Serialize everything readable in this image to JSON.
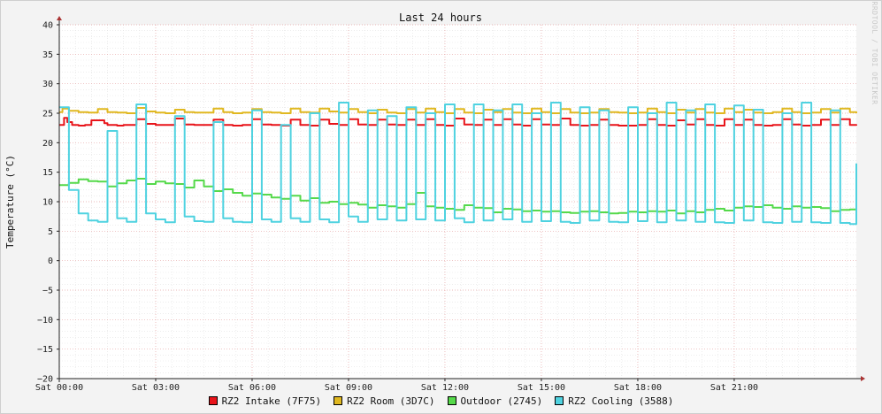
{
  "chart_data": {
    "type": "line",
    "title": "Last 24 hours",
    "ylabel": "Temperature (°C)",
    "xlabel": "",
    "watermark": "RRDTOOL / TOBI OETIKER",
    "ylim": [
      -20,
      40
    ],
    "yticks": [
      40,
      35,
      30,
      25,
      20,
      15,
      10,
      5,
      0,
      -5,
      -10,
      -15,
      -20
    ],
    "ytick_labels": [
      "40",
      "35",
      "30",
      "25",
      "20",
      "15",
      "10",
      "5",
      "0",
      "−5",
      "−10",
      "−15",
      "−20"
    ],
    "xlim_hours": [
      0,
      24.8
    ],
    "xticks": [
      {
        "hour": 0,
        "label": "Sat 00:00"
      },
      {
        "hour": 3,
        "label": "Sat 03:00"
      },
      {
        "hour": 6,
        "label": "Sat 06:00"
      },
      {
        "hour": 9,
        "label": "Sat 09:00"
      },
      {
        "hour": 12,
        "label": "Sat 12:00"
      },
      {
        "hour": 15,
        "label": "Sat 15:00"
      },
      {
        "hour": 18,
        "label": "Sat 18:00"
      },
      {
        "hour": 21,
        "label": "Sat 21:00"
      }
    ],
    "grid": true,
    "legend_position": "bottom",
    "series": [
      {
        "name": "RZ2 Intake (7F75)",
        "color": "#e8141a",
        "x": [
          0,
          0.1,
          0.15,
          0.25,
          0.4,
          0.6,
          0.8,
          1.0,
          1.4,
          1.5,
          1.6,
          1.8,
          2.0,
          2.4,
          2.7,
          3.0,
          3.3,
          3.6,
          3.9,
          4.2,
          4.5,
          4.8,
          5.1,
          5.4,
          5.7,
          6.0,
          6.3,
          6.6,
          6.9,
          7.2,
          7.5,
          7.8,
          8.1,
          8.4,
          8.7,
          9.0,
          9.3,
          9.6,
          9.9,
          10.2,
          10.5,
          10.8,
          11.1,
          11.4,
          11.7,
          12.0,
          12.3,
          12.6,
          12.9,
          13.2,
          13.5,
          13.8,
          14.1,
          14.4,
          14.7,
          15.0,
          15.3,
          15.6,
          15.9,
          16.2,
          16.5,
          16.8,
          17.1,
          17.4,
          17.7,
          18.0,
          18.3,
          18.6,
          18.9,
          19.2,
          19.5,
          19.8,
          20.1,
          20.4,
          20.7,
          21.0,
          21.3,
          21.6,
          21.9,
          22.2,
          22.5,
          22.8,
          23.1,
          23.4,
          23.7,
          24.0,
          24.3,
          24.6,
          24.8
        ],
        "y": [
          23.0,
          23.0,
          24.2,
          23.5,
          23.0,
          22.9,
          23.0,
          23.8,
          23.3,
          23.0,
          23.0,
          22.9,
          23.0,
          24.0,
          23.2,
          23.0,
          23.0,
          24.1,
          23.1,
          23.0,
          23.0,
          23.9,
          23.0,
          22.9,
          23.0,
          24.0,
          23.1,
          23.0,
          22.9,
          23.9,
          23.0,
          22.9,
          23.9,
          23.2,
          23.0,
          24.0,
          23.1,
          23.0,
          23.9,
          23.1,
          23.0,
          23.9,
          23.0,
          24.0,
          23.0,
          22.9,
          24.1,
          23.1,
          23.0,
          23.9,
          23.0,
          24.0,
          23.1,
          22.9,
          24.0,
          23.1,
          23.0,
          24.1,
          23.0,
          22.9,
          23.0,
          23.9,
          23.0,
          22.9,
          22.9,
          23.0,
          24.0,
          23.0,
          22.9,
          23.8,
          23.1,
          24.0,
          23.0,
          22.9,
          24.0,
          23.0,
          23.9,
          23.0,
          22.9,
          23.0,
          24.0,
          23.1,
          22.9,
          23.0,
          23.9,
          23.0,
          24.0,
          23.0,
          22.9
        ]
      },
      {
        "name": "RZ2 Room (3D7C)",
        "color": "#e0b820",
        "x": [
          0,
          0.1,
          0.3,
          0.6,
          0.9,
          1.2,
          1.5,
          1.8,
          2.1,
          2.4,
          2.7,
          3.0,
          3.3,
          3.6,
          3.9,
          4.2,
          4.5,
          4.8,
          5.1,
          5.4,
          5.7,
          6.0,
          6.3,
          6.6,
          6.9,
          7.2,
          7.5,
          7.8,
          8.1,
          8.4,
          8.7,
          9.0,
          9.3,
          9.6,
          9.9,
          10.2,
          10.5,
          10.8,
          11.1,
          11.4,
          11.7,
          12.0,
          12.3,
          12.6,
          12.9,
          13.2,
          13.5,
          13.8,
          14.1,
          14.4,
          14.7,
          15.0,
          15.3,
          15.6,
          15.9,
          16.2,
          16.5,
          16.8,
          17.1,
          17.4,
          17.7,
          18.0,
          18.3,
          18.6,
          18.9,
          19.2,
          19.5,
          19.8,
          20.1,
          20.4,
          20.7,
          21.0,
          21.3,
          21.6,
          21.9,
          22.2,
          22.5,
          22.8,
          23.1,
          23.4,
          23.7,
          24.0,
          24.3,
          24.6,
          24.8
        ],
        "y": [
          25.2,
          25.8,
          25.4,
          25.2,
          25.1,
          25.7,
          25.2,
          25.1,
          25.0,
          25.9,
          25.3,
          25.1,
          25.0,
          25.6,
          25.2,
          25.1,
          25.1,
          25.8,
          25.2,
          25.0,
          25.1,
          25.7,
          25.2,
          25.1,
          25.0,
          25.8,
          25.2,
          25.1,
          25.8,
          25.3,
          25.1,
          25.7,
          25.2,
          25.0,
          25.6,
          25.1,
          25.0,
          25.7,
          25.1,
          25.8,
          25.2,
          25.0,
          25.7,
          25.1,
          25.0,
          25.6,
          25.2,
          25.7,
          25.1,
          25.0,
          25.8,
          25.2,
          25.0,
          25.7,
          25.1,
          25.0,
          25.1,
          25.7,
          25.2,
          25.1,
          25.0,
          25.1,
          25.8,
          25.2,
          25.0,
          25.6,
          25.1,
          25.7,
          25.1,
          25.0,
          25.8,
          25.2,
          25.6,
          25.1,
          25.0,
          25.2,
          25.8,
          25.2,
          25.0,
          25.1,
          25.7,
          25.1,
          25.8,
          25.2,
          25.0
        ]
      },
      {
        "name": "Outdoor (2745)",
        "color": "#55d94a",
        "x": [
          0,
          0.3,
          0.6,
          0.9,
          1.2,
          1.5,
          1.8,
          2.1,
          2.4,
          2.7,
          3.0,
          3.3,
          3.6,
          3.9,
          4.2,
          4.5,
          4.8,
          5.1,
          5.4,
          5.7,
          6.0,
          6.3,
          6.6,
          6.9,
          7.2,
          7.5,
          7.8,
          8.1,
          8.4,
          8.7,
          9.0,
          9.3,
          9.6,
          9.9,
          10.2,
          10.5,
          10.8,
          11.1,
          11.4,
          11.7,
          12.0,
          12.3,
          12.6,
          12.9,
          13.2,
          13.5,
          13.8,
          14.1,
          14.4,
          14.7,
          15.0,
          15.3,
          15.6,
          15.9,
          16.2,
          16.5,
          16.8,
          17.1,
          17.4,
          17.7,
          18.0,
          18.3,
          18.6,
          18.9,
          19.2,
          19.5,
          19.8,
          20.1,
          20.4,
          20.7,
          21.0,
          21.3,
          21.6,
          21.9,
          22.2,
          22.5,
          22.8,
          23.1,
          23.4,
          23.7,
          24.0,
          24.3,
          24.6,
          24.8
        ],
        "y": [
          12.8,
          13.2,
          13.8,
          13.5,
          13.4,
          12.6,
          13.1,
          13.6,
          13.9,
          13.0,
          13.4,
          13.1,
          13.0,
          12.4,
          13.6,
          12.6,
          11.8,
          12.1,
          11.5,
          11.0,
          11.4,
          11.2,
          10.7,
          10.5,
          11.0,
          10.2,
          10.6,
          9.8,
          10.0,
          9.6,
          9.8,
          9.5,
          9.0,
          9.4,
          9.2,
          9.0,
          9.6,
          11.5,
          9.2,
          9.0,
          8.8,
          8.6,
          9.4,
          9.0,
          8.9,
          8.2,
          8.8,
          8.7,
          8.4,
          8.5,
          8.3,
          8.4,
          8.2,
          8.1,
          8.3,
          8.4,
          8.2,
          8.0,
          8.1,
          8.3,
          8.2,
          8.4,
          8.3,
          8.5,
          8.0,
          8.4,
          8.2,
          8.6,
          8.8,
          8.5,
          9.0,
          9.2,
          9.1,
          9.4,
          9.0,
          8.8,
          9.2,
          9.0,
          9.1,
          8.9,
          8.4,
          8.6,
          8.7,
          9.0
        ]
      },
      {
        "name": "RZ2 Cooling (3588)",
        "color": "#4fd2e0",
        "x": [
          0,
          0.3,
          0.6,
          0.9,
          1.2,
          1.5,
          1.8,
          2.1,
          2.4,
          2.7,
          3.0,
          3.3,
          3.6,
          3.9,
          4.2,
          4.5,
          4.8,
          5.1,
          5.4,
          5.7,
          6.0,
          6.3,
          6.6,
          6.9,
          7.2,
          7.5,
          7.8,
          8.1,
          8.4,
          8.7,
          9.0,
          9.3,
          9.6,
          9.9,
          10.2,
          10.5,
          10.8,
          11.1,
          11.4,
          11.7,
          12.0,
          12.3,
          12.6,
          12.9,
          13.2,
          13.5,
          13.8,
          14.1,
          14.4,
          14.7,
          15.0,
          15.3,
          15.6,
          15.9,
          16.2,
          16.5,
          16.8,
          17.1,
          17.4,
          17.7,
          18.0,
          18.3,
          18.6,
          18.9,
          19.2,
          19.5,
          19.8,
          20.1,
          20.4,
          20.7,
          21.0,
          21.3,
          21.6,
          21.9,
          22.2,
          22.5,
          22.8,
          23.1,
          23.4,
          23.7,
          24.0,
          24.3,
          24.6,
          24.8
        ],
        "y": [
          26.0,
          12.0,
          8.0,
          6.8,
          6.6,
          22.0,
          7.2,
          6.6,
          26.5,
          8.0,
          7.0,
          6.5,
          24.5,
          7.5,
          6.7,
          6.6,
          23.5,
          7.2,
          6.6,
          6.5,
          25.5,
          7.0,
          6.6,
          23.0,
          7.2,
          6.6,
          25.0,
          7.0,
          6.5,
          26.8,
          7.5,
          6.6,
          25.5,
          7.0,
          24.5,
          6.8,
          26.0,
          7.0,
          25.0,
          6.8,
          26.5,
          7.2,
          6.5,
          26.5,
          6.8,
          25.5,
          7.0,
          26.5,
          6.6,
          25.0,
          6.7,
          26.8,
          6.6,
          6.4,
          26.0,
          6.8,
          25.5,
          6.6,
          6.5,
          26.0,
          6.7,
          25.0,
          6.5,
          26.8,
          6.8,
          25.5,
          6.6,
          26.5,
          6.5,
          6.4,
          26.3,
          6.8,
          25.6,
          6.5,
          6.4,
          25.0,
          6.6,
          26.8,
          6.5,
          6.4,
          25.5,
          6.4,
          6.2,
          16.5
        ]
      }
    ]
  }
}
